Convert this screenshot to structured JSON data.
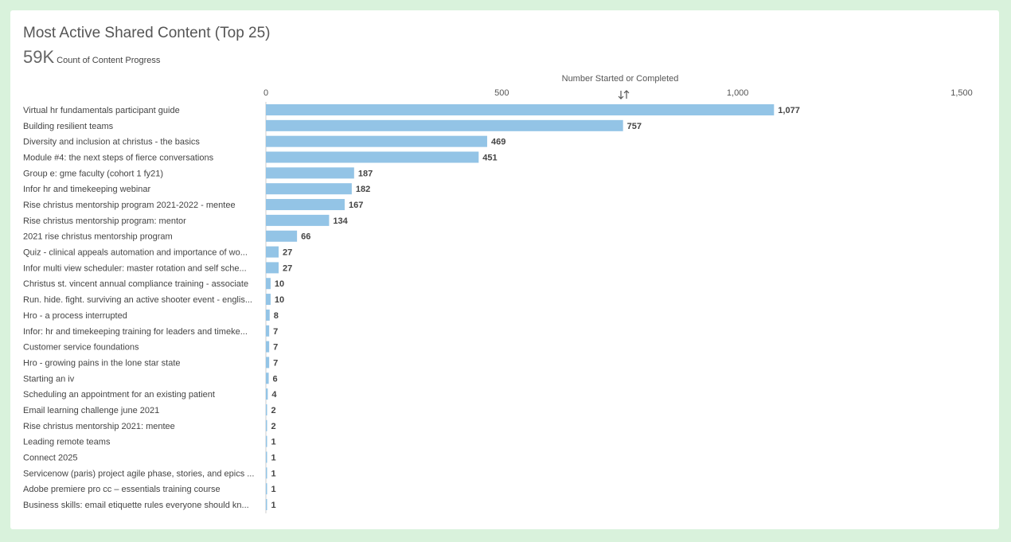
{
  "header": {
    "title": "Most Active Shared Content (Top 25)",
    "kpi_value": "59K",
    "kpi_label": "Count of Content Progress"
  },
  "sort_icon": "sort-arrows-icon",
  "chart_data": {
    "type": "bar",
    "orientation": "horizontal",
    "xlabel": "Number Started or Completed",
    "xlim": [
      0,
      1500
    ],
    "x_ticks": [
      0,
      500,
      1000,
      1500
    ],
    "x_tick_labels": [
      "0",
      "500",
      "1,000",
      "1,500"
    ],
    "axis_position": "top",
    "grid": false,
    "bar_color": "#93c4e6",
    "categories": [
      "Virtual hr fundamentals participant guide",
      "Building resilient teams",
      "Diversity and inclusion at christus - the basics",
      "Module #4: the next steps of fierce conversations",
      "Group e: gme faculty (cohort 1 fy21)",
      "Infor hr and timekeeping webinar",
      "Rise christus mentorship program 2021-2022 - mentee",
      "Rise christus mentorship program:  mentor",
      "2021 rise christus mentorship program",
      "Quiz - clinical appeals automation and importance of wo...",
      "Infor multi view scheduler: master rotation and self sche...",
      "Christus st. vincent annual compliance training - associate",
      "Run. hide. fight. surviving an active shooter event - englis...",
      "Hro - a process interrupted",
      "Infor: hr and timekeeping training for leaders and timeke...",
      "Customer service foundations",
      "Hro - growing pains in the lone star state",
      "Starting an iv",
      "Scheduling an appointment for an existing patient",
      "Email learning challenge june 2021",
      "Rise christus mentorship 2021: mentee",
      "Leading remote teams",
      "Connect 2025",
      "Servicenow (paris) project agile phase, stories, and epics ...",
      "Adobe premiere pro cc – essentials training course",
      "Business skills: email etiquette rules everyone should kn..."
    ],
    "values": [
      1077,
      757,
      469,
      451,
      187,
      182,
      167,
      134,
      66,
      27,
      27,
      10,
      10,
      8,
      7,
      7,
      7,
      6,
      4,
      2,
      2,
      1,
      1,
      1,
      1,
      1
    ],
    "value_labels": [
      "1,077",
      "757",
      "469",
      "451",
      "187",
      "182",
      "167",
      "134",
      "66",
      "27",
      "27",
      "10",
      "10",
      "8",
      "7",
      "7",
      "7",
      "6",
      "4",
      "2",
      "2",
      "1",
      "1",
      "1",
      "1",
      "1"
    ]
  }
}
